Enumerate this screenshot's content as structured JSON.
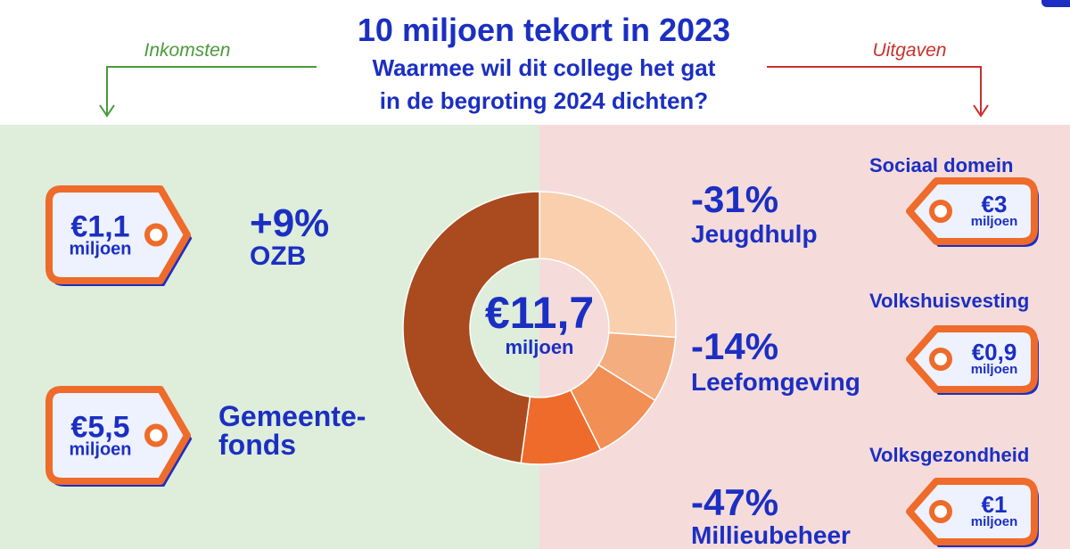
{
  "chart_data": {
    "type": "donut",
    "title": "10 miljoen tekort in 2023",
    "subtitle": [
      "Waarmee wil dit college het gat",
      "in de begroting 2024 dichten?"
    ],
    "values": [
      3,
      0.9,
      1,
      1.1,
      5.5
    ],
    "colors": [
      "#f9cfad",
      "#f4ad7e",
      "#f18f55",
      "#ee6b2b",
      "#a94b1f"
    ],
    "center_label": [
      "€11,7",
      "miljoen"
    ]
  },
  "inkomsten": {
    "heading": "Inkomsten",
    "items": [
      {
        "tag": [
          "€1,1",
          "miljoen"
        ],
        "label": [
          "+9%",
          "OZB"
        ]
      },
      {
        "tag": [
          "€5,5",
          "miljoen"
        ],
        "label": [
          "Gemeente-",
          "fonds"
        ]
      }
    ]
  },
  "uitgaven": {
    "heading": "Uitgaven",
    "items": [
      {
        "pct": "-31%",
        "label": "Jeugdhulp",
        "domain": "Sociaal domein",
        "tag": [
          "€3",
          "miljoen"
        ]
      },
      {
        "pct": "-14%",
        "label": "Leefomgeving",
        "domain": "Volkshuisvesting",
        "tag": [
          "€0,9",
          "miljoen"
        ]
      },
      {
        "pct": "-47%",
        "label": "Millieubeheer",
        "domain": "Volksgezondheid",
        "tag": [
          "€1",
          "miljoen"
        ]
      }
    ]
  }
}
